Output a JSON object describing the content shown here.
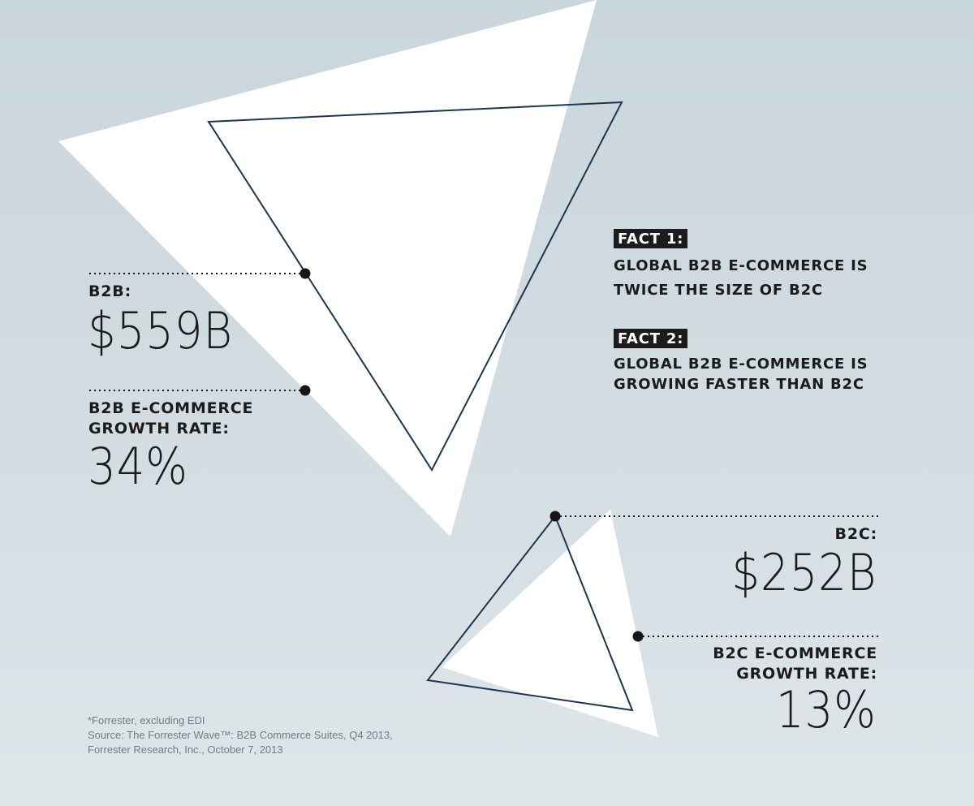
{
  "colors": {
    "outline": "#1d3552",
    "fill": "#ffffff",
    "dot": "#151515",
    "text": "#1b1b1b",
    "tag_bg": "#1c1c1c",
    "source_text": "#6f7c83"
  },
  "b2b": {
    "label": "B2B:",
    "value": "$559B",
    "growth_label_line1": "B2B E-COMMERCE",
    "growth_label_line2": "GROWTH RATE:",
    "growth_value": "34%"
  },
  "b2c": {
    "label": "B2C:",
    "value": "$252B",
    "growth_label_line1": "B2C E-COMMERCE",
    "growth_label_line2": "GROWTH RATE:",
    "growth_value": "13%"
  },
  "facts": [
    {
      "tag": "FACT 1:",
      "line1": "GLOBAL B2B E-COMMERCE IS",
      "line2": "TWICE THE SIZE OF B2C"
    },
    {
      "tag": "FACT 2:",
      "line1": "GLOBAL B2B E-COMMERCE IS",
      "line2": "GROWING FASTER THAN B2C"
    }
  ],
  "source": {
    "note": "*Forrester, excluding EDI",
    "line1": "Source: The Forrester Wave™: B2B Commerce Suites, Q4 2013,",
    "line2": "Forrester Research, Inc., October 7, 2013"
  }
}
